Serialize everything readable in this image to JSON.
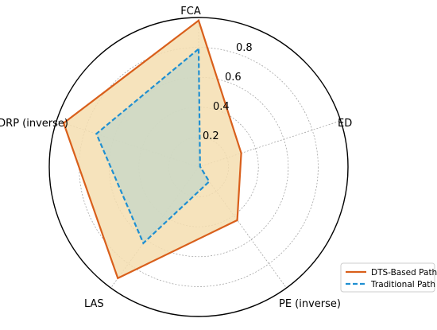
{
  "chart_data": {
    "type": "radar",
    "categories": [
      "FCA",
      "ED",
      "PE (inverse)",
      "LAS",
      "DRP (inverse)"
    ],
    "series": [
      {
        "name": "DTS-Based Path",
        "values": [
          0.98,
          0.3,
          0.44,
          0.92,
          0.95
        ],
        "color": "#d95f1b",
        "fill": "#f5deb0",
        "line_style": "solid"
      },
      {
        "name": "Traditional Path",
        "values": [
          0.79,
          0.01,
          0.12,
          0.63,
          0.72
        ],
        "color": "#1f8fd1",
        "fill": "#c5d7c8",
        "line_style": "dashed"
      }
    ],
    "rlim": [
      0,
      1.0
    ],
    "radial_ticks": [
      0.2,
      0.4,
      0.6,
      0.8
    ],
    "radial_tick_labels": [
      "0.2",
      "0.4",
      "0.6",
      "0.8"
    ],
    "grid": true,
    "legend_position": "lower-right"
  }
}
